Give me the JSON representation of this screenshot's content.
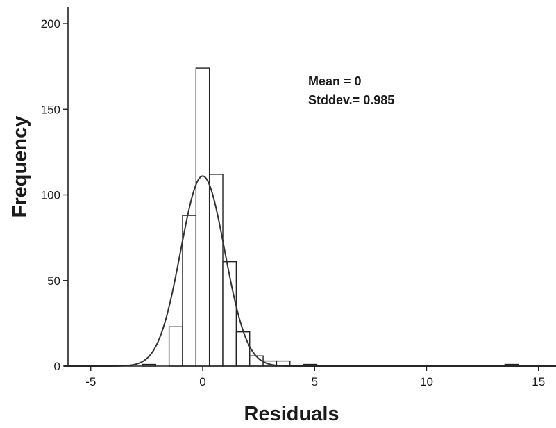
{
  "chart_data": {
    "type": "bar",
    "title": "",
    "xlabel": "Residuals",
    "ylabel": "Frequency",
    "xlim": [
      -6.2,
      15.9
    ],
    "ylim": [
      0,
      210
    ],
    "x_ticks": [
      -5,
      0,
      5,
      10,
      15
    ],
    "y_ticks": [
      0,
      50,
      100,
      150,
      200
    ],
    "bin_width": 0.6,
    "bins": [
      {
        "start": -2.7,
        "end": -2.1,
        "count": 1
      },
      {
        "start": -2.1,
        "end": -1.5,
        "count": 0
      },
      {
        "start": -1.5,
        "end": -0.9,
        "count": 23
      },
      {
        "start": -0.9,
        "end": -0.3,
        "count": 88
      },
      {
        "start": -0.3,
        "end": 0.3,
        "count": 174
      },
      {
        "start": 0.3,
        "end": 0.9,
        "count": 112
      },
      {
        "start": 0.9,
        "end": 1.5,
        "count": 61
      },
      {
        "start": 1.5,
        "end": 2.1,
        "count": 20
      },
      {
        "start": 2.1,
        "end": 2.7,
        "count": 6
      },
      {
        "start": 2.7,
        "end": 3.3,
        "count": 3
      },
      {
        "start": 3.3,
        "end": 3.9,
        "count": 3
      },
      {
        "start": 4.5,
        "end": 5.1,
        "count": 1
      },
      {
        "start": 13.5,
        "end": 14.1,
        "count": 1
      }
    ],
    "normal_curve": {
      "mean": 0,
      "stddev": 0.985,
      "peak": 111
    },
    "annotations": [
      "Mean = 0",
      "Stddev.= 0.985"
    ],
    "grid": false,
    "legend": "none"
  }
}
